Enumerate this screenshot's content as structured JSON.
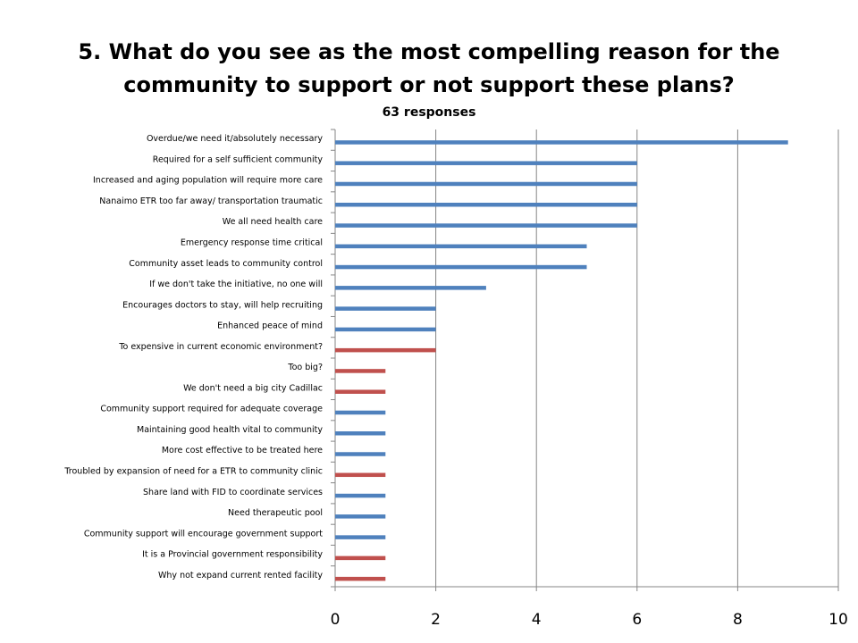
{
  "title": "5. What do you see as the most compelling reason for the community to support or not support these plans?",
  "subtitle": "63 responses",
  "colors": {
    "support": "#4f81bd",
    "not_support": "#c0504d",
    "grid": "#868686",
    "axis": "#868686"
  },
  "chart_data": {
    "type": "bar",
    "orientation": "horizontal",
    "title": "5. What do you see as the most compelling reason for the community to support or not support these plans?",
    "subtitle": "63 responses",
    "xlabel": "",
    "ylabel": "",
    "xlim": [
      0,
      10
    ],
    "xticks": [
      0,
      2,
      4,
      6,
      8,
      10
    ],
    "grid": true,
    "legend": "none",
    "categories": [
      "Overdue/we need it/absolutely necessary",
      "Required for a self sufficient community",
      "Increased and aging population will require more care",
      "Nanaimo ETR too far away/ transportation traumatic",
      "We all need health care",
      "Emergency response time critical",
      "Community asset leads to community control",
      "If we don't take the initiative, no one will",
      "Encourages doctors to stay, will help recruiting",
      "Enhanced peace of mind",
      "To expensive in current economic environment?",
      "Too big?",
      "We don't need a big city Cadillac",
      "Community support required for adequate coverage",
      "Maintaining good health vital to community",
      "More cost effective to be treated here",
      "Troubled by expansion of need for a ETR to community clinic",
      "Share land with FID to coordinate services",
      "Need therapeutic pool",
      "Community support will encourage government support",
      "It is a Provincial government responsibility",
      "Why not expand current rented facility"
    ],
    "values": [
      9,
      6,
      6,
      6,
      6,
      5,
      5,
      3,
      2,
      2,
      2,
      1,
      1,
      1,
      1,
      1,
      1,
      1,
      1,
      1,
      1,
      1
    ],
    "bar_colors": [
      "#4f81bd",
      "#4f81bd",
      "#4f81bd",
      "#4f81bd",
      "#4f81bd",
      "#4f81bd",
      "#4f81bd",
      "#4f81bd",
      "#4f81bd",
      "#4f81bd",
      "#c0504d",
      "#c0504d",
      "#c0504d",
      "#4f81bd",
      "#4f81bd",
      "#4f81bd",
      "#c0504d",
      "#4f81bd",
      "#4f81bd",
      "#4f81bd",
      "#c0504d",
      "#c0504d"
    ]
  }
}
